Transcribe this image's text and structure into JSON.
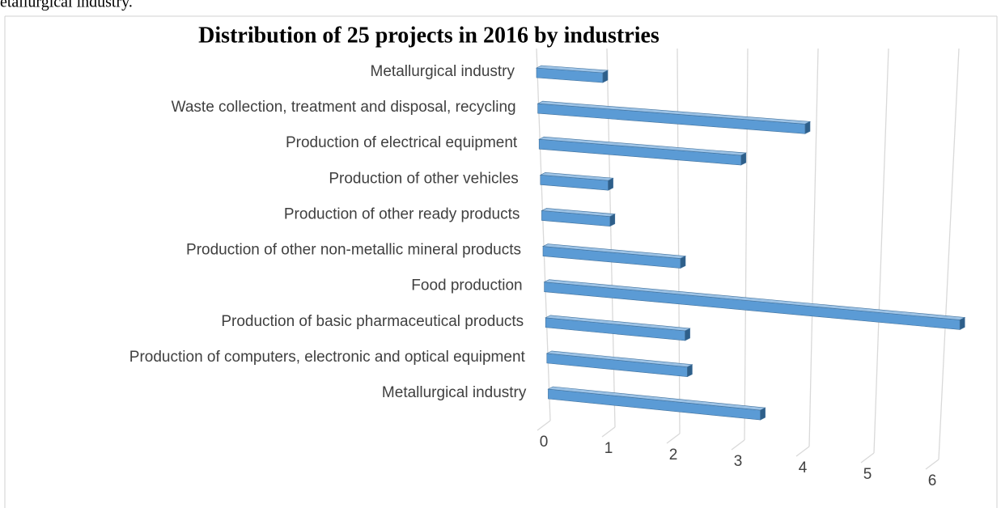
{
  "header_fragment": "etallurgical industry.",
  "chart_data": {
    "type": "bar3d",
    "title": "Distribution of 25 projects in 2016 by industries",
    "categories": [
      "Metallurgical industry",
      "Waste collection, treatment and disposal, recycling",
      "Production of electrical equipment",
      "Production of other vehicles",
      "Production of other ready products",
      "Production of other non-metallic mineral products",
      "Food production",
      "Production of basic pharmaceutical products",
      "Production of computers, electronic and optical equipment",
      "Metallurgical industry"
    ],
    "values": [
      1,
      4,
      3,
      1,
      1,
      2,
      6,
      2,
      2,
      3
    ],
    "color": "#5b9bd5",
    "xlim": [
      0,
      6
    ],
    "xticks": [
      0,
      1,
      2,
      3,
      4,
      5,
      6
    ],
    "grid": true
  }
}
